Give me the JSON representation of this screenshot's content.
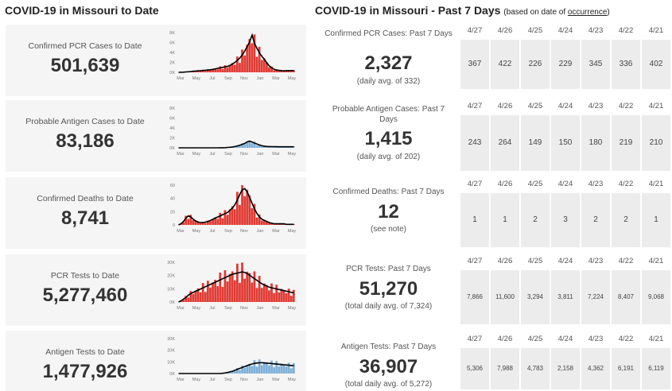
{
  "left_title": "COVID-19 in Missouri to Date",
  "right_title": "COVID-19 in Missouri - Past 7 Days",
  "right_note_prefix": "(based on date of ",
  "right_note_link": "occurrence",
  "right_note_suffix": ")",
  "colors": {
    "pcr": "#e03b34",
    "antigen": "#7fb0d8",
    "line": "#000000",
    "card_bg": "#f5f5f5",
    "cell_bg": "#ececec"
  },
  "cards": [
    {
      "label": "Confirmed PCR Cases to Date",
      "value": "501,639",
      "color": "#e03b34",
      "yticks": [
        "8K",
        "6K",
        "4K",
        "2K",
        "0K"
      ]
    },
    {
      "label": "Probable Antigen Cases to Date",
      "value": "83,186",
      "color": "#7fb0d8",
      "yticks": [
        "8K",
        "6K",
        "4K",
        "2K",
        "0K"
      ]
    },
    {
      "label": "Confirmed Deaths to Date",
      "value": "8,741",
      "color": "#e03b34",
      "yticks": [
        "60",
        "40",
        "20",
        "0"
      ]
    },
    {
      "label": "PCR Tests to Date",
      "value": "5,277,460",
      "color": "#e03b34",
      "yticks": [
        "30K",
        "20K",
        "10K",
        "0K"
      ]
    },
    {
      "label": "Antigen Tests to Date",
      "value": "1,477,926",
      "color": "#7fb0d8",
      "yticks": [
        "30K",
        "20K",
        "10K",
        "0K"
      ]
    }
  ],
  "months": [
    "Mar",
    "May",
    "Jul",
    "Sep",
    "Nov",
    "Jan",
    "Mar",
    "May"
  ],
  "dates": [
    "4/27",
    "4/26",
    "4/25",
    "4/24",
    "4/23",
    "4/22",
    "4/21"
  ],
  "recent": [
    {
      "label": "Confirmed PCR Cases: Past 7 Days",
      "value": "2,327",
      "sub": "(daily avg. of 332)",
      "cells": [
        "367",
        "422",
        "226",
        "229",
        "345",
        "336",
        "402"
      ]
    },
    {
      "label": "Probable Antigen Cases: Past 7 Days",
      "value": "1,415",
      "sub": "(daily avg. of 202)",
      "cells": [
        "243",
        "264",
        "149",
        "150",
        "180",
        "219",
        "210"
      ]
    },
    {
      "label": "Confirmed Deaths: Past 7 Days",
      "value": "12",
      "sub": "(see note)",
      "cells": [
        "1",
        "1",
        "2",
        "3",
        "2",
        "2",
        "1"
      ]
    },
    {
      "label": "PCR Tests: Past 7 Days",
      "value": "51,270",
      "sub": "(total daily avg. of 7,324)",
      "cells": [
        "7,866",
        "11,600",
        "3,294",
        "3,811",
        "7,224",
        "8,407",
        "9,068"
      ]
    },
    {
      "label": "Antigen Tests: Past 7 Days",
      "value": "36,907",
      "sub": "(total daily avg. of 5,272)",
      "cells": [
        "5,306",
        "7,988",
        "4,783",
        "2,158",
        "4,362",
        "6,191",
        "6,119"
      ]
    }
  ],
  "chart_data": [
    {
      "type": "bar",
      "title": "Confirmed PCR Cases to Date",
      "x_ticks": [
        "Mar",
        "May",
        "Jul",
        "Sep",
        "Nov",
        "Jan",
        "Mar",
        "May"
      ],
      "ylim": [
        0,
        8000
      ],
      "values": [
        0,
        20,
        40,
        80,
        120,
        160,
        220,
        260,
        300,
        340,
        380,
        420,
        460,
        520,
        600,
        700,
        800,
        900,
        1000,
        1100,
        1200,
        1400,
        1700,
        2000,
        2400,
        2900,
        3500,
        4300,
        5200,
        6200,
        7500,
        5800,
        4800,
        3900,
        3200,
        2600,
        1900,
        1300,
        900,
        600,
        450,
        380,
        340,
        320,
        330,
        340,
        350,
        360
      ]
    },
    {
      "type": "bar",
      "title": "Probable Antigen Cases to Date",
      "x_ticks": [
        "Mar",
        "May",
        "Jul",
        "Sep",
        "Nov",
        "Jan",
        "Mar",
        "May"
      ],
      "ylim": [
        0,
        8000
      ],
      "values": [
        0,
        0,
        0,
        0,
        0,
        0,
        0,
        0,
        0,
        0,
        0,
        0,
        0,
        0,
        0,
        0,
        0,
        10,
        20,
        40,
        80,
        120,
        180,
        260,
        380,
        520,
        700,
        900,
        1200,
        1350,
        1150,
        950,
        750,
        560,
        420,
        330,
        280,
        250,
        240,
        230,
        220,
        215,
        210,
        205,
        210,
        215,
        210,
        205
      ]
    },
    {
      "type": "bar",
      "title": "Confirmed Deaths to Date",
      "x_ticks": [
        "Mar",
        "May",
        "Jul",
        "Sep",
        "Nov",
        "Jan",
        "Mar",
        "May"
      ],
      "ylim": [
        0,
        70
      ],
      "values": [
        0,
        2,
        6,
        12,
        16,
        14,
        10,
        7,
        5,
        4,
        4,
        5,
        6,
        8,
        10,
        12,
        14,
        16,
        18,
        20,
        22,
        26,
        30,
        36,
        44,
        54,
        62,
        64,
        58,
        48,
        38,
        28,
        20,
        14,
        10,
        8,
        6,
        4,
        3,
        2,
        2,
        2,
        2,
        2,
        1,
        1,
        1,
        1
      ]
    },
    {
      "type": "bar",
      "title": "PCR Tests to Date",
      "x_ticks": [
        "Mar",
        "May",
        "Jul",
        "Sep",
        "Nov",
        "Jan",
        "Mar",
        "May"
      ],
      "ylim": [
        0,
        35000
      ],
      "values": [
        0,
        1000,
        2500,
        4000,
        6000,
        7500,
        8500,
        9500,
        10500,
        11500,
        12500,
        13500,
        14500,
        15500,
        16500,
        17500,
        18500,
        19500,
        20500,
        21500,
        22500,
        23500,
        24500,
        25000,
        25500,
        26000,
        26500,
        26000,
        25000,
        23500,
        22000,
        20500,
        19000,
        17500,
        16000,
        15000,
        14000,
        13000,
        12500,
        12000,
        11500,
        11000,
        10500,
        10000,
        9500,
        9000,
        8500,
        8000
      ]
    },
    {
      "type": "bar",
      "title": "Antigen Tests to Date",
      "x_ticks": [
        "Mar",
        "May",
        "Jul",
        "Sep",
        "Nov",
        "Jan",
        "Mar",
        "May"
      ],
      "ylim": [
        0,
        30000
      ],
      "values": [
        0,
        0,
        0,
        0,
        0,
        0,
        0,
        0,
        0,
        0,
        0,
        0,
        0,
        0,
        0,
        0,
        0,
        0,
        200,
        500,
        900,
        1400,
        2000,
        2800,
        3600,
        4400,
        5200,
        6000,
        6800,
        7600,
        8200,
        8700,
        9000,
        9200,
        9300,
        9100,
        8900,
        8700,
        8500,
        8300,
        8100,
        7900,
        7700,
        7500,
        7300,
        7100,
        6900,
        6700
      ]
    }
  ]
}
